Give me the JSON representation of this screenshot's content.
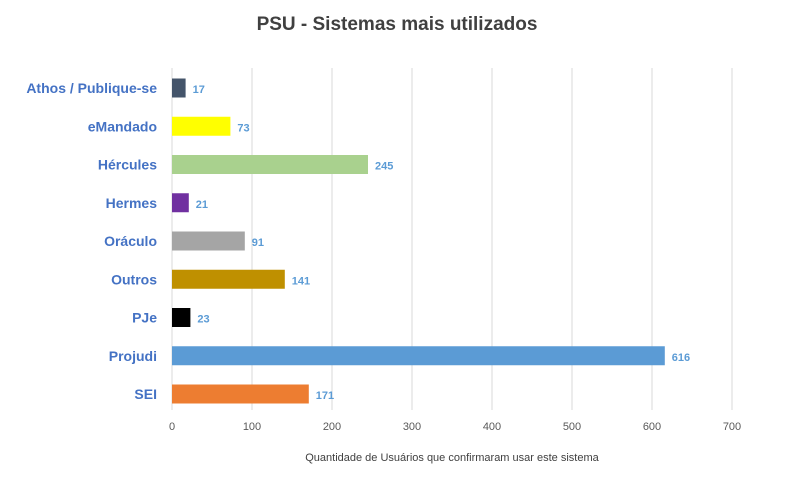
{
  "chart_data": {
    "type": "bar",
    "orientation": "horizontal",
    "title": "PSU - Sistemas mais utilizados",
    "xlabel": "Quantidade de Usuários que confirmaram usar este sistema",
    "ylabel": "",
    "xlim": [
      0,
      700
    ],
    "xticks": [
      0,
      100,
      200,
      300,
      400,
      500,
      600,
      700
    ],
    "grid": true,
    "legend": "none",
    "categories": [
      "Athos / Publique-se",
      "eMandado",
      "Hércules",
      "Hermes",
      "Oráculo",
      "Outros",
      "PJe",
      "Projudi",
      "SEI"
    ],
    "values": [
      17,
      73,
      245,
      21,
      91,
      141,
      23,
      616,
      171
    ],
    "bar_colors": [
      "#44546a",
      "#ffff00",
      "#a9d18e",
      "#7030a0",
      "#a5a5a5",
      "#bf9000",
      "#000000",
      "#5b9bd5",
      "#ed7d31"
    ],
    "label_color": "#4472c4",
    "data_label_color": "#5b9bd5"
  }
}
